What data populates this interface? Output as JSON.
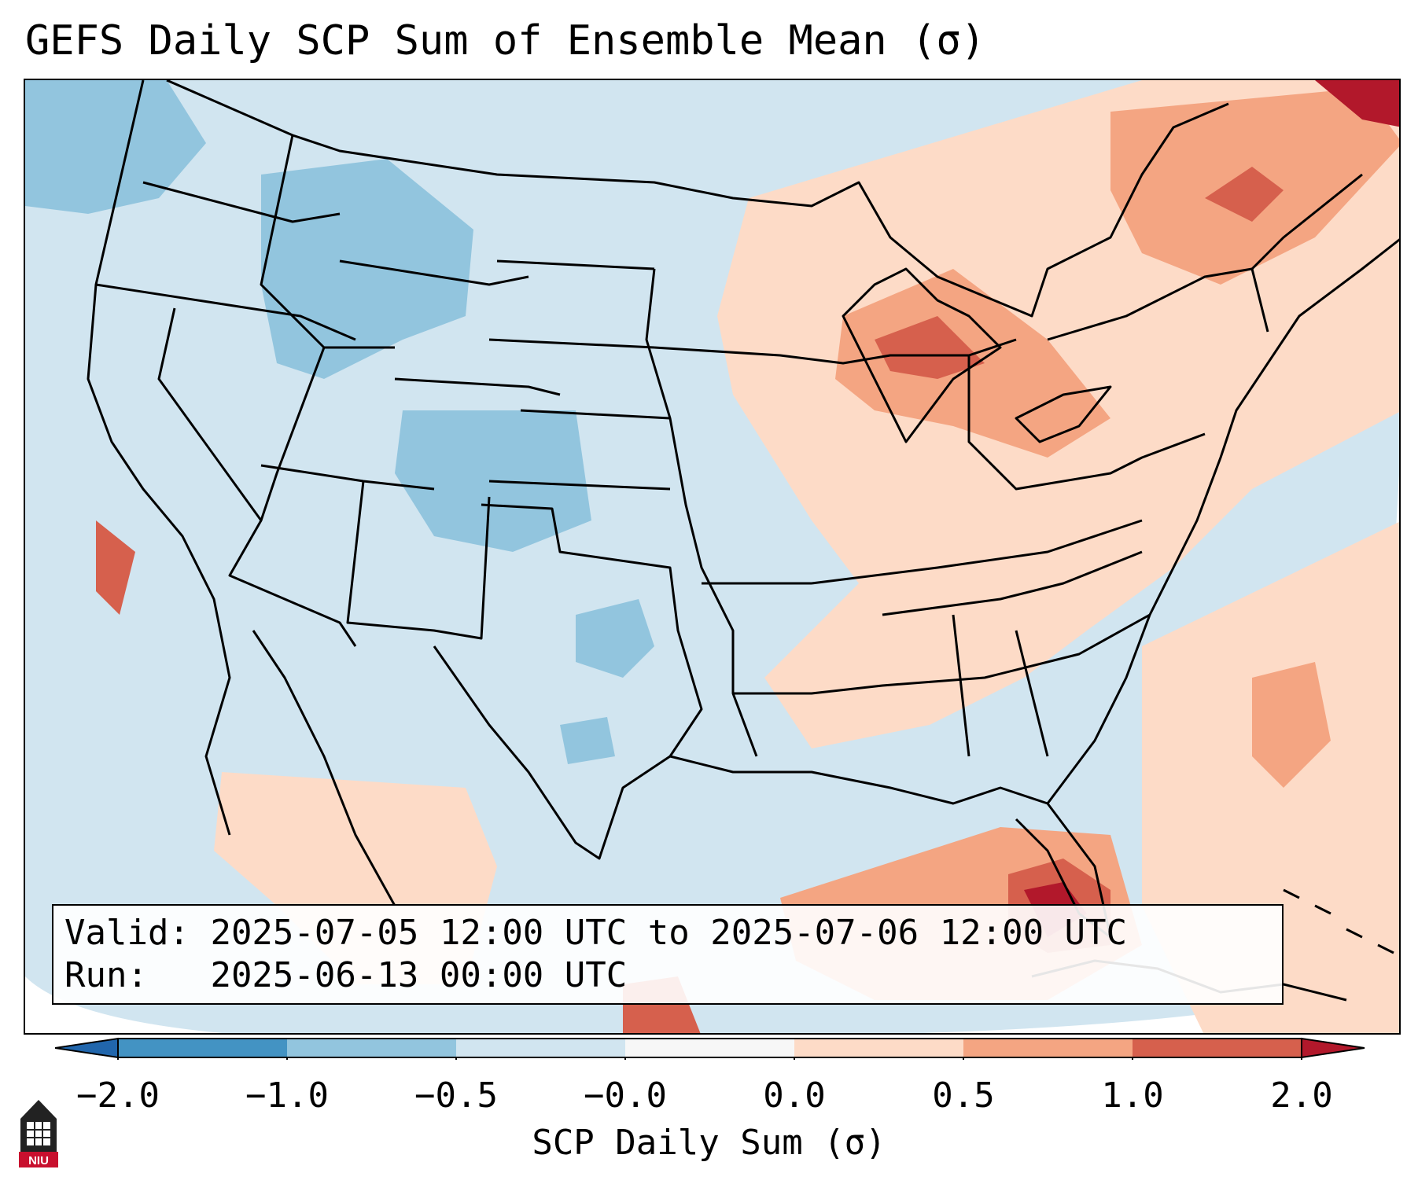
{
  "title": "GEFS Daily SCP Sum of Ensemble Mean (σ)",
  "info": {
    "valid_label": "Valid:",
    "valid_value": "2025-07-05 12:00 UTC to 2025-07-06 12:00 UTC",
    "run_label": "Run:",
    "run_value": "2025-06-13 00:00 UTC"
  },
  "colorbar": {
    "label": "SCP Daily Sum (σ)",
    "ticks": [
      "−2.0",
      "−1.0",
      "−0.5",
      "−0.0",
      "0.0",
      "0.5",
      "1.0",
      "2.0"
    ],
    "colors": [
      "#4393c3",
      "#92c5de",
      "#d1e5f0",
      "#f7f7f7",
      "#fddbc7",
      "#f4a582",
      "#d6604d"
    ],
    "under_color": "#2166ac",
    "over_color": "#b2182b"
  },
  "logo": {
    "text": "NIU",
    "color": "#c8102e"
  },
  "map": {
    "regions": [
      {
        "name": "pacific-northwest",
        "level": -1.0
      },
      {
        "name": "idaho",
        "level": -1.0
      },
      {
        "name": "colorado",
        "level": -1.0
      },
      {
        "name": "great-lakes",
        "level": 1.0
      },
      {
        "name": "northeast",
        "level": 0.5
      },
      {
        "name": "gulf-florida",
        "level": 2.0
      },
      {
        "name": "atlantic",
        "level": 0.5
      }
    ]
  }
}
